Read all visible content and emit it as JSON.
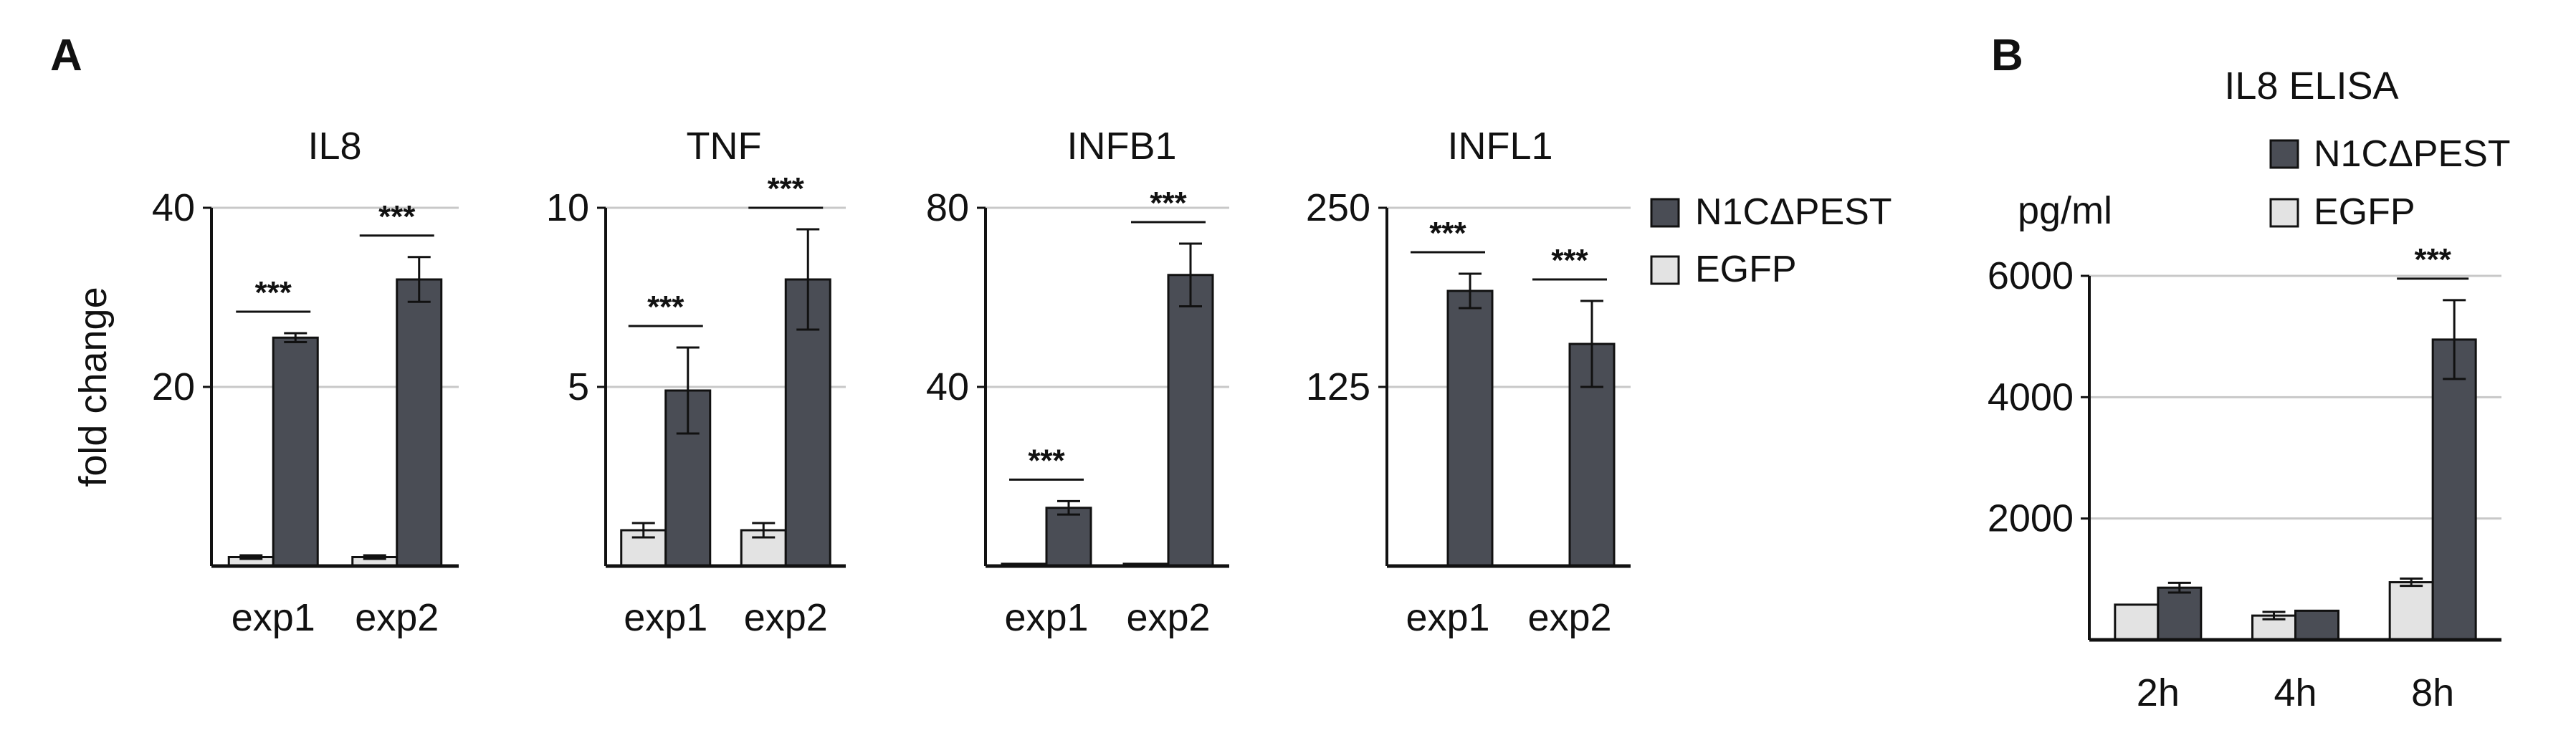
{
  "panels": {
    "a": "A",
    "b": "B"
  },
  "legend_a": [
    {
      "label": "N1CΔPEST",
      "color": "#4a4d55"
    },
    {
      "label": "EGFP",
      "color": "#e3e3e3"
    }
  ],
  "legend_b": [
    {
      "label": "N1CΔPEST",
      "color": "#4a4d55"
    },
    {
      "label": "EGFP",
      "color": "#e3e3e3"
    }
  ],
  "chart_data": [
    {
      "type": "bar",
      "title": "IL8",
      "ylabel": "fold change",
      "categories": [
        "exp1",
        "exp2"
      ],
      "ylim": [
        0,
        40
      ],
      "yticks": [
        20,
        40
      ],
      "series": [
        {
          "name": "EGFP",
          "values": [
            1,
            1
          ],
          "errors": [
            0.2,
            0.2
          ]
        },
        {
          "name": "N1CΔPEST",
          "values": [
            25.5,
            32
          ],
          "errors": [
            0.5,
            2.5
          ]
        }
      ],
      "annotations": [
        "***",
        "***"
      ]
    },
    {
      "type": "bar",
      "title": "TNF",
      "ylabel": "",
      "categories": [
        "exp1",
        "exp2"
      ],
      "ylim": [
        0,
        10
      ],
      "yticks": [
        5,
        10
      ],
      "series": [
        {
          "name": "EGFP",
          "values": [
            1,
            1
          ],
          "errors": [
            0.2,
            0.2
          ]
        },
        {
          "name": "N1CΔPEST",
          "values": [
            4.9,
            8
          ],
          "errors": [
            1.2,
            1.4
          ]
        }
      ],
      "annotations": [
        "***",
        "***"
      ]
    },
    {
      "type": "bar",
      "title": "INFB1",
      "ylabel": "",
      "categories": [
        "exp1",
        "exp2"
      ],
      "ylim": [
        0,
        80
      ],
      "yticks": [
        40,
        80
      ],
      "series": [
        {
          "name": "EGFP",
          "values": [
            0.5,
            0.5
          ],
          "errors": [
            0,
            0
          ]
        },
        {
          "name": "N1CΔPEST",
          "values": [
            13,
            65
          ],
          "errors": [
            1.5,
            7
          ]
        }
      ],
      "annotations": [
        "***",
        "***"
      ]
    },
    {
      "type": "bar",
      "title": "INFL1",
      "ylabel": "",
      "categories": [
        "exp1",
        "exp2"
      ],
      "ylim": [
        0,
        250
      ],
      "yticks": [
        125,
        250
      ],
      "series": [
        {
          "name": "EGFP",
          "values": [
            0,
            0
          ],
          "errors": [
            0,
            0
          ]
        },
        {
          "name": "N1CΔPEST",
          "values": [
            192,
            155
          ],
          "errors": [
            12,
            30
          ]
        }
      ],
      "annotations": [
        "***",
        "***"
      ]
    },
    {
      "type": "bar",
      "title": "IL8 ELISA",
      "ylabel": "pg/ml",
      "categories": [
        "2h",
        "4h",
        "8h"
      ],
      "ylim": [
        0,
        6000
      ],
      "yticks": [
        2000,
        4000,
        6000
      ],
      "series": [
        {
          "name": "EGFP",
          "values": [
            580,
            400,
            950
          ],
          "errors": [
            0,
            60,
            60
          ]
        },
        {
          "name": "N1CΔPEST",
          "values": [
            860,
            480,
            4950
          ],
          "errors": [
            80,
            0,
            650
          ]
        }
      ],
      "annotations": [
        "",
        "",
        "***"
      ]
    }
  ]
}
